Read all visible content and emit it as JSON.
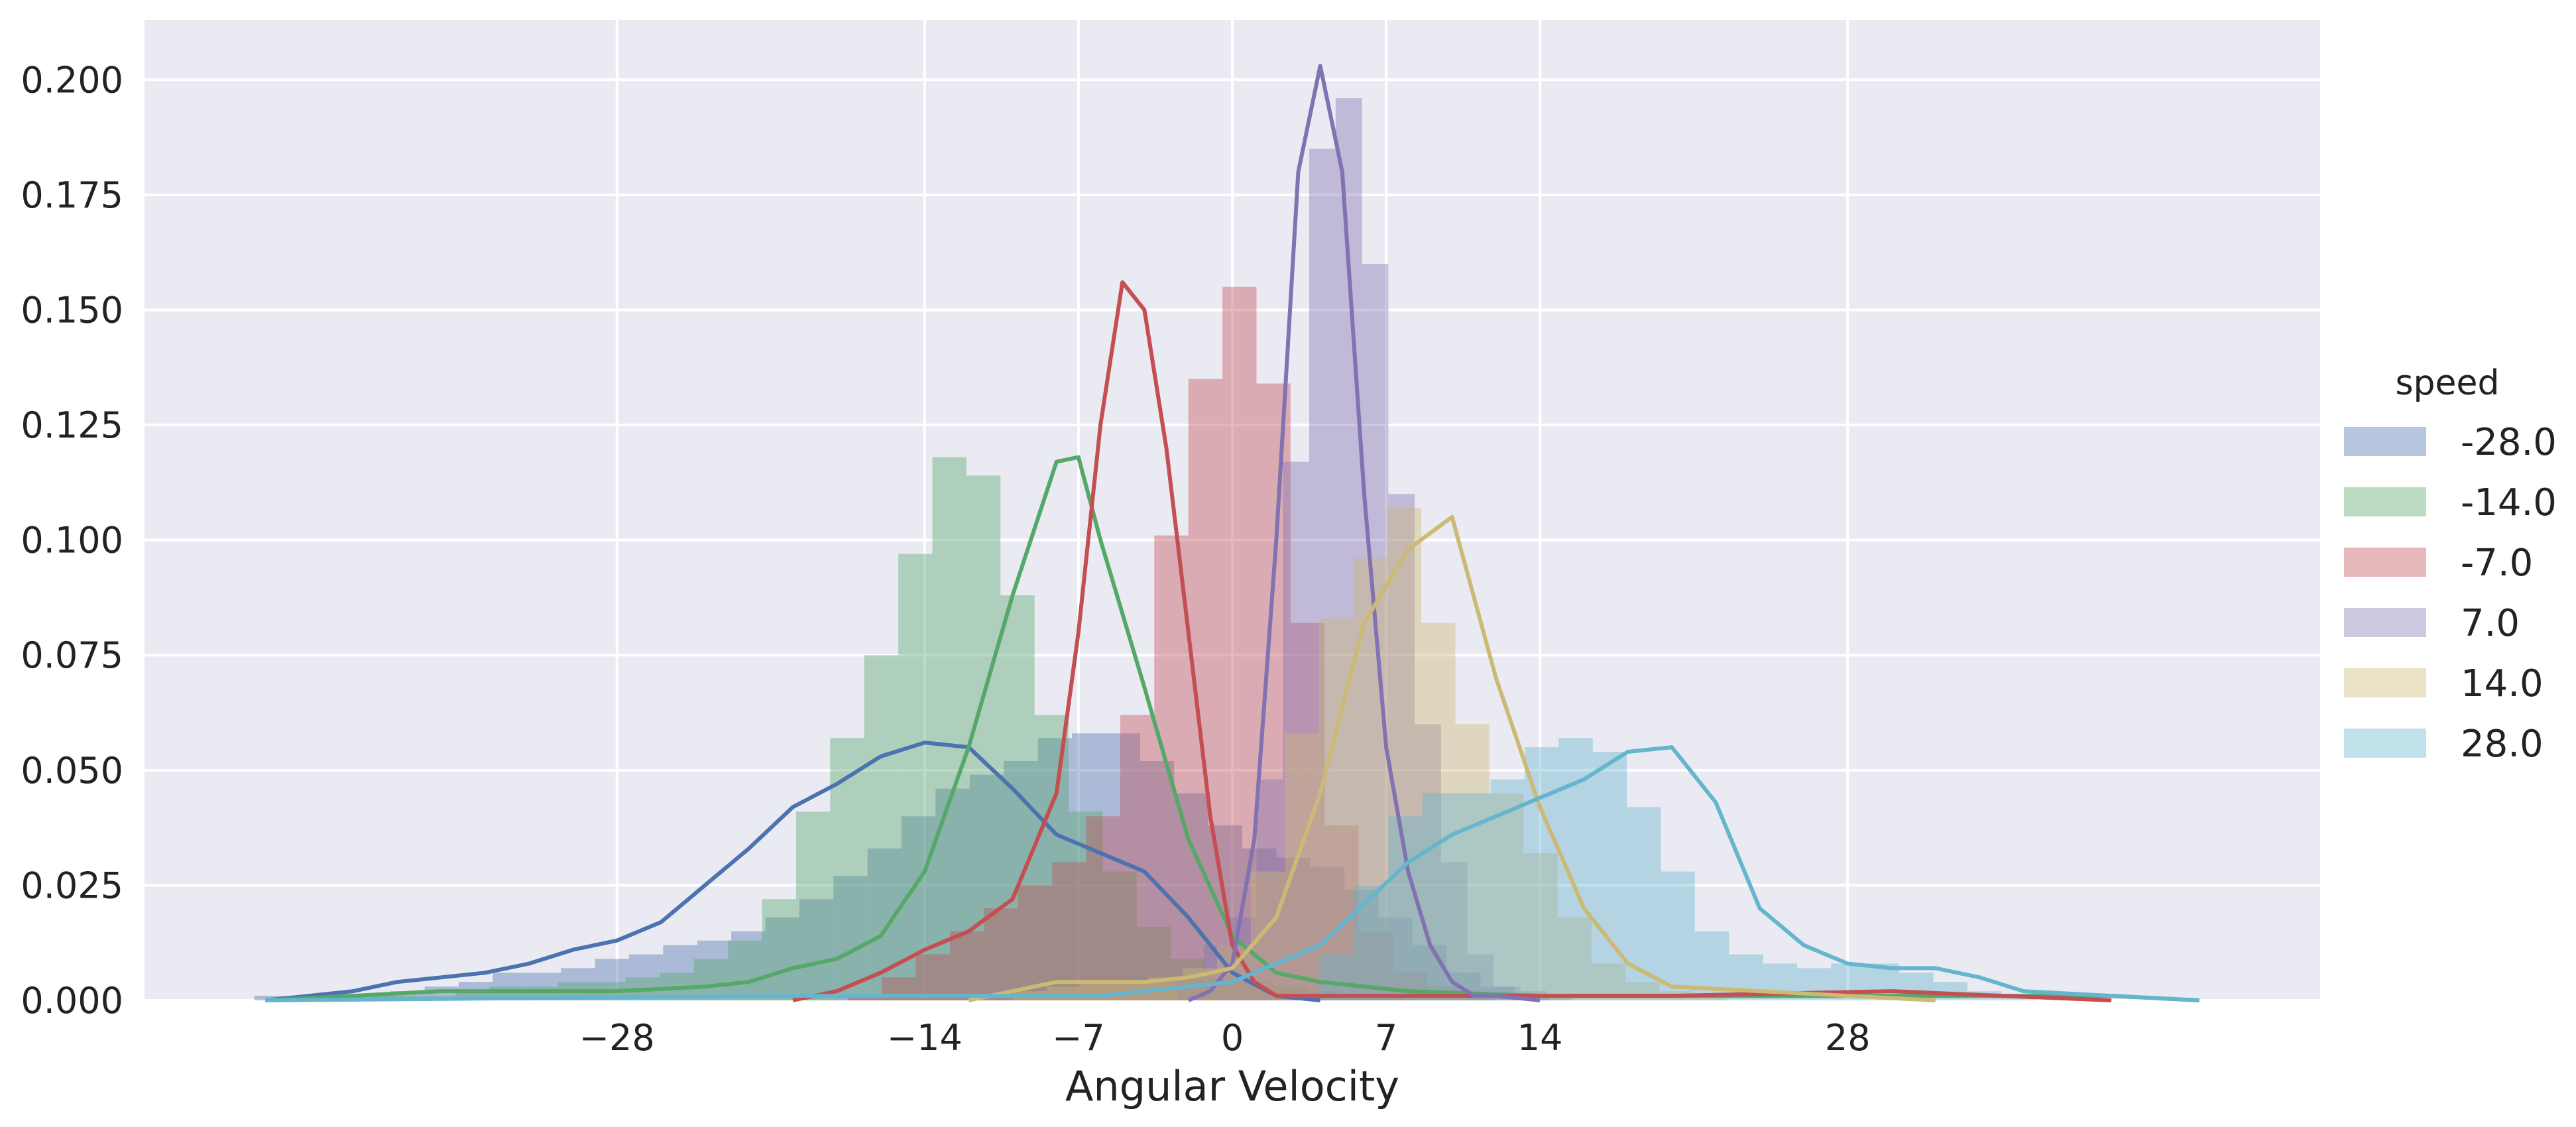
{
  "chart_data": {
    "type": "histogram+kde",
    "title": "",
    "xlabel": "Angular Velocity",
    "ylabel": "",
    "xlim": [
      -49.5,
      49.5
    ],
    "ylim": [
      0,
      0.213
    ],
    "grid": true,
    "x_ticks": [
      -28,
      -14,
      -7,
      0,
      7,
      14,
      28
    ],
    "x_tick_labels": [
      "−28",
      "−14",
      "−7",
      "0",
      "7",
      "14",
      "28"
    ],
    "y_ticks": [
      0,
      0.025,
      0.05,
      0.075,
      0.1,
      0.125,
      0.15,
      0.175,
      0.2
    ],
    "y_tick_labels": [
      "0.000",
      "0.025",
      "0.050",
      "0.075",
      "0.100",
      "0.125",
      "0.150",
      "0.175",
      "0.200"
    ],
    "legend": {
      "title": "speed",
      "placement": "outside-right"
    },
    "series": [
      {
        "name": "-28.0",
        "color": "#4c72b0",
        "hist": {
          "x0": -44.5,
          "width": 1.55,
          "values": [
            0.001,
            0.001,
            0.001,
            0.001,
            0.002,
            0.003,
            0.004,
            0.006,
            0.006,
            0.007,
            0.009,
            0.01,
            0.012,
            0.013,
            0.015,
            0.018,
            0.022,
            0.027,
            0.033,
            0.04,
            0.046,
            0.049,
            0.052,
            0.057,
            0.058,
            0.058,
            0.052,
            0.045,
            0.038,
            0.033,
            0.031,
            0.029,
            0.024,
            0.018,
            0.012,
            0.006,
            0.003,
            0.001
          ]
        },
        "kde": [
          [
            -44,
            0
          ],
          [
            -42,
            0.001
          ],
          [
            -40,
            0.002
          ],
          [
            -38,
            0.004
          ],
          [
            -36,
            0.005
          ],
          [
            -34,
            0.006
          ],
          [
            -32,
            0.008
          ],
          [
            -30,
            0.011
          ],
          [
            -28,
            0.013
          ],
          [
            -26,
            0.017
          ],
          [
            -24,
            0.025
          ],
          [
            -22,
            0.033
          ],
          [
            -20,
            0.042
          ],
          [
            -18,
            0.047
          ],
          [
            -16,
            0.053
          ],
          [
            -14,
            0.056
          ],
          [
            -12,
            0.055
          ],
          [
            -10,
            0.046
          ],
          [
            -8,
            0.036
          ],
          [
            -6,
            0.032
          ],
          [
            -4,
            0.028
          ],
          [
            -2,
            0.018
          ],
          [
            0,
            0.006
          ],
          [
            2,
            0.001
          ],
          [
            4,
            0
          ]
        ]
      },
      {
        "name": "-14.0",
        "color": "#55a868",
        "hist": {
          "x0": -40,
          "width": 1.55,
          "values": [
            0.001,
            0.001,
            0.001,
            0.002,
            0.003,
            0.003,
            0.004,
            0.004,
            0.005,
            0.006,
            0.009,
            0.013,
            0.022,
            0.041,
            0.057,
            0.075,
            0.097,
            0.118,
            0.114,
            0.088,
            0.062,
            0.041,
            0.028,
            0.016,
            0.009,
            0.005,
            0.004,
            0.003,
            0.002,
            0.001,
            0.001
          ]
        },
        "kde": [
          [
            -44,
            0
          ],
          [
            -40,
            0.001
          ],
          [
            -36,
            0.002
          ],
          [
            -32,
            0.002
          ],
          [
            -28,
            0.002
          ],
          [
            -24,
            0.003
          ],
          [
            -22,
            0.004
          ],
          [
            -20,
            0.007
          ],
          [
            -18,
            0.009
          ],
          [
            -16,
            0.014
          ],
          [
            -14,
            0.028
          ],
          [
            -12,
            0.055
          ],
          [
            -10,
            0.088
          ],
          [
            -8,
            0.117
          ],
          [
            -7,
            0.118
          ],
          [
            -6,
            0.1
          ],
          [
            -4,
            0.068
          ],
          [
            -2,
            0.035
          ],
          [
            0,
            0.014
          ],
          [
            2,
            0.006
          ],
          [
            4,
            0.004
          ],
          [
            8,
            0.002
          ],
          [
            14,
            0.001
          ],
          [
            20,
            0.001
          ],
          [
            30,
            0.001
          ],
          [
            40,
            0.001
          ],
          [
            44,
            0
          ]
        ]
      },
      {
        "name": "-7.0",
        "color": "#c44e52",
        "hist": {
          "x0": -17.5,
          "width": 1.55,
          "values": [
            0.001,
            0.005,
            0.01,
            0.015,
            0.02,
            0.025,
            0.03,
            0.04,
            0.062,
            0.101,
            0.135,
            0.155,
            0.134,
            0.082,
            0.038,
            0.015,
            0.006,
            0.003,
            0.001
          ]
        },
        "kde": [
          [
            -20,
            0
          ],
          [
            -18,
            0.002
          ],
          [
            -16,
            0.006
          ],
          [
            -14,
            0.011
          ],
          [
            -12,
            0.015
          ],
          [
            -10,
            0.022
          ],
          [
            -8,
            0.045
          ],
          [
            -7,
            0.08
          ],
          [
            -6,
            0.125
          ],
          [
            -5,
            0.156
          ],
          [
            -4,
            0.15
          ],
          [
            -3,
            0.12
          ],
          [
            -2,
            0.08
          ],
          [
            -1,
            0.04
          ],
          [
            0,
            0.012
          ],
          [
            1,
            0.004
          ],
          [
            2,
            0.001
          ],
          [
            4,
            0.001
          ],
          [
            10,
            0.001
          ],
          [
            20,
            0.001
          ],
          [
            30,
            0.002
          ],
          [
            35,
            0.001
          ],
          [
            40,
            0
          ]
        ]
      },
      {
        "name": "7.0",
        "color": "#8172b2",
        "hist": {
          "x0": -2.5,
          "width": 1.2,
          "values": [
            0.005,
            0.012,
            0.018,
            0.048,
            0.117,
            0.185,
            0.196,
            0.16,
            0.11,
            0.06,
            0.03,
            0.01,
            0.003,
            0.002,
            0.001
          ]
        },
        "kde": [
          [
            -2,
            0
          ],
          [
            -1,
            0.002
          ],
          [
            0,
            0.008
          ],
          [
            1,
            0.035
          ],
          [
            2,
            0.1
          ],
          [
            3,
            0.18
          ],
          [
            4,
            0.203
          ],
          [
            5,
            0.18
          ],
          [
            6,
            0.11
          ],
          [
            7,
            0.055
          ],
          [
            8,
            0.028
          ],
          [
            9,
            0.012
          ],
          [
            10,
            0.004
          ],
          [
            11,
            0.001
          ],
          [
            12,
            0.001
          ],
          [
            14,
            0
          ]
        ]
      },
      {
        "name": "14.0",
        "color": "#ccb974",
        "hist": {
          "x0": -10,
          "width": 1.55,
          "values": [
            0.002,
            0.003,
            0.004,
            0.004,
            0.005,
            0.007,
            0.012,
            0.028,
            0.058,
            0.083,
            0.096,
            0.107,
            0.082,
            0.06,
            0.045,
            0.032,
            0.018,
            0.008,
            0.004,
            0.002,
            0.001
          ]
        },
        "kde": [
          [
            -12,
            0
          ],
          [
            -10,
            0.002
          ],
          [
            -8,
            0.004
          ],
          [
            -6,
            0.004
          ],
          [
            -4,
            0.004
          ],
          [
            -2,
            0.005
          ],
          [
            0,
            0.007
          ],
          [
            2,
            0.018
          ],
          [
            4,
            0.045
          ],
          [
            6,
            0.082
          ],
          [
            8,
            0.098
          ],
          [
            10,
            0.105
          ],
          [
            12,
            0.07
          ],
          [
            14,
            0.042
          ],
          [
            16,
            0.02
          ],
          [
            18,
            0.008
          ],
          [
            20,
            0.003
          ],
          [
            24,
            0.002
          ],
          [
            28,
            0.001
          ],
          [
            32,
            0
          ]
        ]
      },
      {
        "name": "28.0",
        "color": "#64b5cd",
        "hist": {
          "x0": 4,
          "width": 1.55,
          "values": [
            0.01,
            0.025,
            0.04,
            0.045,
            0.045,
            0.048,
            0.055,
            0.057,
            0.054,
            0.042,
            0.028,
            0.015,
            0.01,
            0.008,
            0.007,
            0.008,
            0.008,
            0.006,
            0.004,
            0.002,
            0.001
          ]
        },
        "kde": [
          [
            -44,
            0
          ],
          [
            -20,
            0.001
          ],
          [
            -6,
            0.001
          ],
          [
            0,
            0.004
          ],
          [
            4,
            0.012
          ],
          [
            8,
            0.03
          ],
          [
            10,
            0.036
          ],
          [
            12,
            0.04
          ],
          [
            16,
            0.048
          ],
          [
            18,
            0.054
          ],
          [
            20,
            0.055
          ],
          [
            22,
            0.043
          ],
          [
            24,
            0.02
          ],
          [
            26,
            0.012
          ],
          [
            28,
            0.008
          ],
          [
            30,
            0.007
          ],
          [
            32,
            0.007
          ],
          [
            34,
            0.005
          ],
          [
            36,
            0.002
          ],
          [
            40,
            0.001
          ],
          [
            44,
            0
          ]
        ]
      }
    ]
  }
}
